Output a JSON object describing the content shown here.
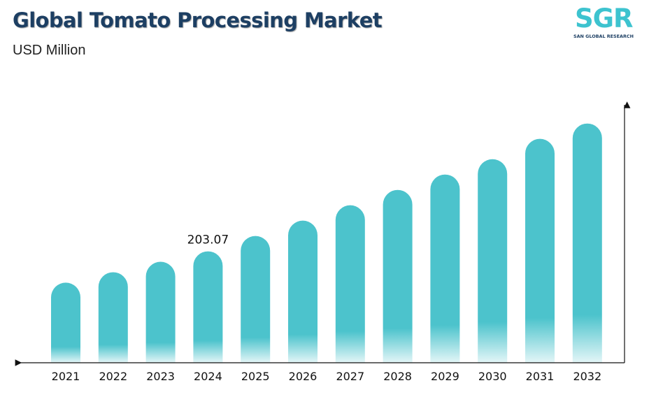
{
  "header": {
    "title": "Global Tomato Processing Market",
    "subtitle": "USD Million"
  },
  "logo": {
    "mark": "SGR",
    "tagline": "SAN GLOBAL RESEARCH"
  },
  "colors": {
    "bar": "#4cc3cc",
    "title": "#1d3f63",
    "axis": "#111111"
  },
  "chart_data": {
    "type": "bar",
    "title": "Global Tomato Processing Market",
    "subtitle": "USD Million",
    "categories": [
      "2021",
      "2022",
      "2023",
      "2024",
      "2025",
      "2026",
      "2027",
      "2028",
      "2029",
      "2030",
      "2031",
      "2032"
    ],
    "values": [
      146,
      165,
      184,
      203.07,
      231,
      259,
      287,
      315,
      343,
      371,
      408,
      436
    ],
    "data_labels": [
      null,
      null,
      null,
      "203.07",
      null,
      null,
      null,
      null,
      null,
      null,
      null,
      null
    ],
    "ylim": [
      0,
      470
    ],
    "grid": false,
    "legend": "none"
  }
}
